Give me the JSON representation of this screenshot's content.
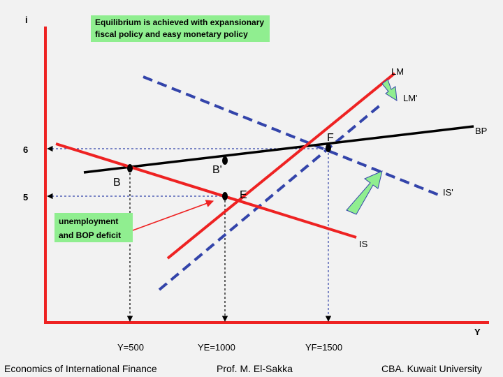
{
  "diagram": {
    "title_note": "Equilibrium is achieved with expansionary fiscal policy and easy monetary policy",
    "side_note": "unemployment and BOP deficit",
    "axis": {
      "y_label": "i",
      "x_label": "Y"
    },
    "curves": {
      "lm": "LM",
      "lm_prime": "LM'",
      "bp": "BP",
      "is": "IS",
      "is_prime": "IS'"
    },
    "points": {
      "f": "F",
      "b_prime": "B'",
      "b": "B",
      "e": "E"
    },
    "y_ticks": {
      "six": "6",
      "five": "5"
    },
    "x_ticks": {
      "y500": "Y=500",
      "ye1000": "YE=1000",
      "yf1500": "YF=1500"
    },
    "colors": {
      "is_lm": "#ee2222",
      "shifted": "#3344aa",
      "bp": "#000000",
      "guides": "#3344aa",
      "arrows": "#90ee90"
    }
  },
  "footer": {
    "left": "Economics of International Finance",
    "center": "Prof. M. El-Sakka",
    "right": "CBA. Kuwait University"
  }
}
